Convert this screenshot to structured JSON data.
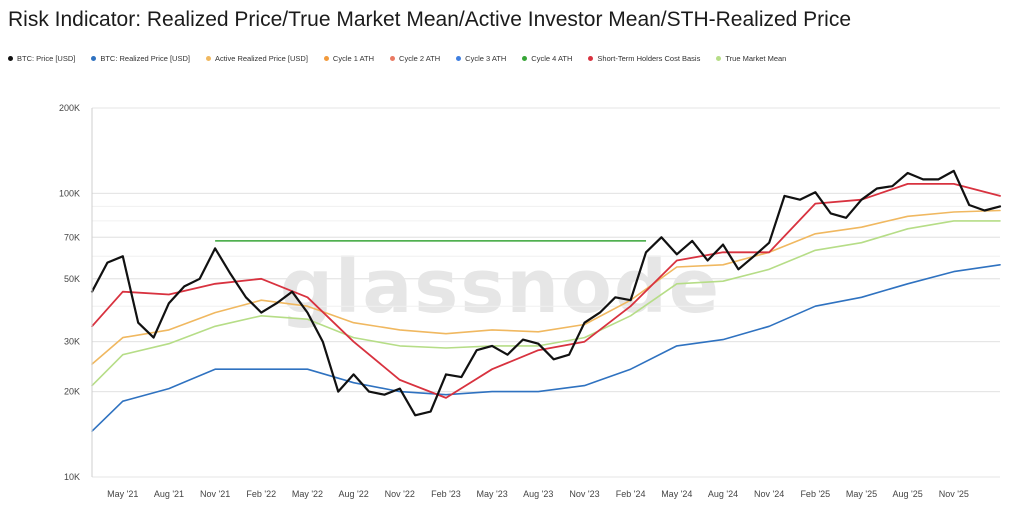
{
  "title": "Risk Indicator: Realized Price/True Market Mean/Active Investor Mean/STH-Realized Price",
  "watermark": "glassnode",
  "legend": [
    {
      "label": "BTC: Price [USD]",
      "color": "#111111"
    },
    {
      "label": "BTC: Realized Price [USD]",
      "color": "#2f72c0"
    },
    {
      "label": "Active Realized Price [USD]",
      "color": "#f0b860"
    },
    {
      "label": "Cycle 1 ATH",
      "color": "#f29a3c"
    },
    {
      "label": "Cycle 2 ATH",
      "color": "#ea7a63"
    },
    {
      "label": "Cycle 3 ATH",
      "color": "#3f7fe0"
    },
    {
      "label": "Cycle 4 ATH",
      "color": "#37a537"
    },
    {
      "label": "Short-Term Holders Cost Basis",
      "color": "#d8323f"
    },
    {
      "label": "True Market Mean",
      "color": "#b6dd87"
    }
  ],
  "chart_data": {
    "type": "line",
    "title": "Risk Indicator: Realized Price/True Market Mean/Active Investor Mean/STH-Realized Price",
    "y_scale": "log",
    "ylim": [
      10000,
      200000
    ],
    "xlim": [
      "2021-03",
      "2026-02"
    ],
    "y_ticks": [
      {
        "value": 10000,
        "label": "10K"
      },
      {
        "value": 20000,
        "label": "20K"
      },
      {
        "value": 30000,
        "label": "30K"
      },
      {
        "value": 50000,
        "label": "50K"
      },
      {
        "value": 70000,
        "label": "70K"
      },
      {
        "value": 100000,
        "label": "100K"
      },
      {
        "value": 200000,
        "label": "200K"
      }
    ],
    "x_ticks": [
      {
        "date": "2021-05",
        "label": "May '21"
      },
      {
        "date": "2021-08",
        "label": "Aug '21"
      },
      {
        "date": "2021-11",
        "label": "Nov '21"
      },
      {
        "date": "2022-02",
        "label": "Feb '22"
      },
      {
        "date": "2022-05",
        "label": "May '22"
      },
      {
        "date": "2022-08",
        "label": "Aug '22"
      },
      {
        "date": "2022-11",
        "label": "Nov '22"
      },
      {
        "date": "2023-02",
        "label": "Feb '23"
      },
      {
        "date": "2023-05",
        "label": "May '23"
      },
      {
        "date": "2023-08",
        "label": "Aug '23"
      },
      {
        "date": "2023-11",
        "label": "Nov '23"
      },
      {
        "date": "2024-02",
        "label": "Feb '24"
      },
      {
        "date": "2024-05",
        "label": "May '24"
      },
      {
        "date": "2024-08",
        "label": "Aug '24"
      },
      {
        "date": "2024-11",
        "label": "Nov '24"
      },
      {
        "date": "2025-02",
        "label": "Feb '25"
      },
      {
        "date": "2025-05",
        "label": "May '25"
      },
      {
        "date": "2025-08",
        "label": "Aug '25"
      },
      {
        "date": "2025-11",
        "label": "Nov '25"
      }
    ],
    "ath_lines": [
      {
        "name": "Cycle 4 ATH",
        "value": 68000,
        "start": "2021-11",
        "end": "2024-03",
        "color": "#37a537"
      }
    ],
    "series": [
      {
        "name": "BTC: Price [USD]",
        "color": "#111111",
        "width": 2.2,
        "points": [
          [
            "2021-03",
            45000
          ],
          [
            "2021-04",
            57000
          ],
          [
            "2021-05",
            60000
          ],
          [
            "2021-06",
            35000
          ],
          [
            "2021-07",
            31000
          ],
          [
            "2021-08",
            41000
          ],
          [
            "2021-09",
            47000
          ],
          [
            "2021-10",
            50000
          ],
          [
            "2021-11",
            64000
          ],
          [
            "2021-12",
            52000
          ],
          [
            "2022-01",
            43000
          ],
          [
            "2022-02",
            38000
          ],
          [
            "2022-03",
            41000
          ],
          [
            "2022-04",
            45000
          ],
          [
            "2022-05",
            38000
          ],
          [
            "2022-06",
            30000
          ],
          [
            "2022-07",
            20000
          ],
          [
            "2022-08",
            23000
          ],
          [
            "2022-09",
            20000
          ],
          [
            "2022-10",
            19500
          ],
          [
            "2022-11",
            20500
          ],
          [
            "2022-12",
            16500
          ],
          [
            "2023-01",
            17000
          ],
          [
            "2023-02",
            23000
          ],
          [
            "2023-03",
            22500
          ],
          [
            "2023-04",
            28000
          ],
          [
            "2023-05",
            29000
          ],
          [
            "2023-06",
            27000
          ],
          [
            "2023-07",
            30500
          ],
          [
            "2023-08",
            29500
          ],
          [
            "2023-09",
            26000
          ],
          [
            "2023-10",
            27000
          ],
          [
            "2023-11",
            35000
          ],
          [
            "2023-12",
            38000
          ],
          [
            "2024-01",
            43000
          ],
          [
            "2024-02",
            42000
          ],
          [
            "2024-03",
            62000
          ],
          [
            "2024-04",
            70000
          ],
          [
            "2024-05",
            61000
          ],
          [
            "2024-06",
            68000
          ],
          [
            "2024-07",
            58000
          ],
          [
            "2024-08",
            66000
          ],
          [
            "2024-09",
            54000
          ],
          [
            "2024-10",
            60000
          ],
          [
            "2024-11",
            67000
          ],
          [
            "2024-12",
            98000
          ],
          [
            "2025-01",
            95000
          ],
          [
            "2025-02",
            101000
          ],
          [
            "2025-03",
            85000
          ],
          [
            "2025-04",
            82000
          ],
          [
            "2025-05",
            95000
          ],
          [
            "2025-06",
            104000
          ],
          [
            "2025-07",
            106000
          ],
          [
            "2025-08",
            118000
          ],
          [
            "2025-09",
            112000
          ],
          [
            "2025-10",
            112000
          ],
          [
            "2025-11",
            120000
          ],
          [
            "2025-12",
            91000
          ],
          [
            "2026-01",
            87000
          ],
          [
            "2026-02",
            90000
          ]
        ]
      },
      {
        "name": "BTC: Realized Price [USD]",
        "color": "#2f72c0",
        "width": 1.6,
        "points": [
          [
            "2021-03",
            14500
          ],
          [
            "2021-05",
            18500
          ],
          [
            "2021-08",
            20500
          ],
          [
            "2021-11",
            24000
          ],
          [
            "2022-02",
            24000
          ],
          [
            "2022-05",
            24000
          ],
          [
            "2022-08",
            21500
          ],
          [
            "2022-11",
            20000
          ],
          [
            "2023-02",
            19500
          ],
          [
            "2023-05",
            20000
          ],
          [
            "2023-08",
            20000
          ],
          [
            "2023-11",
            21000
          ],
          [
            "2024-02",
            24000
          ],
          [
            "2024-05",
            29000
          ],
          [
            "2024-08",
            30500
          ],
          [
            "2024-11",
            34000
          ],
          [
            "2025-02",
            40000
          ],
          [
            "2025-05",
            43000
          ],
          [
            "2025-08",
            48000
          ],
          [
            "2025-11",
            53000
          ],
          [
            "2026-02",
            56000
          ]
        ]
      },
      {
        "name": "Active Realized Price [USD]",
        "color": "#f0b860",
        "width": 1.6,
        "points": [
          [
            "2021-03",
            25000
          ],
          [
            "2021-05",
            31000
          ],
          [
            "2021-08",
            33000
          ],
          [
            "2021-11",
            38000
          ],
          [
            "2022-02",
            42000
          ],
          [
            "2022-05",
            40000
          ],
          [
            "2022-08",
            35000
          ],
          [
            "2022-11",
            33000
          ],
          [
            "2023-02",
            32000
          ],
          [
            "2023-05",
            33000
          ],
          [
            "2023-08",
            32500
          ],
          [
            "2023-11",
            34500
          ],
          [
            "2024-02",
            42000
          ],
          [
            "2024-05",
            55000
          ],
          [
            "2024-08",
            56000
          ],
          [
            "2024-11",
            62000
          ],
          [
            "2025-02",
            72000
          ],
          [
            "2025-05",
            76000
          ],
          [
            "2025-08",
            83000
          ],
          [
            "2025-11",
            86000
          ],
          [
            "2026-02",
            87000
          ]
        ]
      },
      {
        "name": "True Market Mean",
        "color": "#b6dd87",
        "width": 1.6,
        "points": [
          [
            "2021-03",
            21000
          ],
          [
            "2021-05",
            27000
          ],
          [
            "2021-08",
            29500
          ],
          [
            "2021-11",
            34000
          ],
          [
            "2022-02",
            37000
          ],
          [
            "2022-05",
            36000
          ],
          [
            "2022-08",
            31000
          ],
          [
            "2022-11",
            29000
          ],
          [
            "2023-02",
            28500
          ],
          [
            "2023-05",
            29000
          ],
          [
            "2023-08",
            29000
          ],
          [
            "2023-11",
            31000
          ],
          [
            "2024-02",
            37000
          ],
          [
            "2024-05",
            48000
          ],
          [
            "2024-08",
            49000
          ],
          [
            "2024-11",
            54000
          ],
          [
            "2025-02",
            63000
          ],
          [
            "2025-05",
            67000
          ],
          [
            "2025-08",
            75000
          ],
          [
            "2025-11",
            80000
          ],
          [
            "2026-02",
            80000
          ]
        ]
      },
      {
        "name": "Short-Term Holders Cost Basis",
        "color": "#d8323f",
        "width": 1.8,
        "points": [
          [
            "2021-03",
            34000
          ],
          [
            "2021-05",
            45000
          ],
          [
            "2021-08",
            44000
          ],
          [
            "2021-11",
            48000
          ],
          [
            "2022-02",
            50000
          ],
          [
            "2022-05",
            43000
          ],
          [
            "2022-08",
            30000
          ],
          [
            "2022-11",
            22000
          ],
          [
            "2023-02",
            19000
          ],
          [
            "2023-05",
            24000
          ],
          [
            "2023-08",
            28000
          ],
          [
            "2023-11",
            30000
          ],
          [
            "2024-02",
            40000
          ],
          [
            "2024-05",
            58000
          ],
          [
            "2024-08",
            62000
          ],
          [
            "2024-11",
            62000
          ],
          [
            "2025-02",
            92000
          ],
          [
            "2025-05",
            95000
          ],
          [
            "2025-08",
            108000
          ],
          [
            "2025-11",
            108000
          ],
          [
            "2026-02",
            98000
          ]
        ]
      }
    ]
  }
}
